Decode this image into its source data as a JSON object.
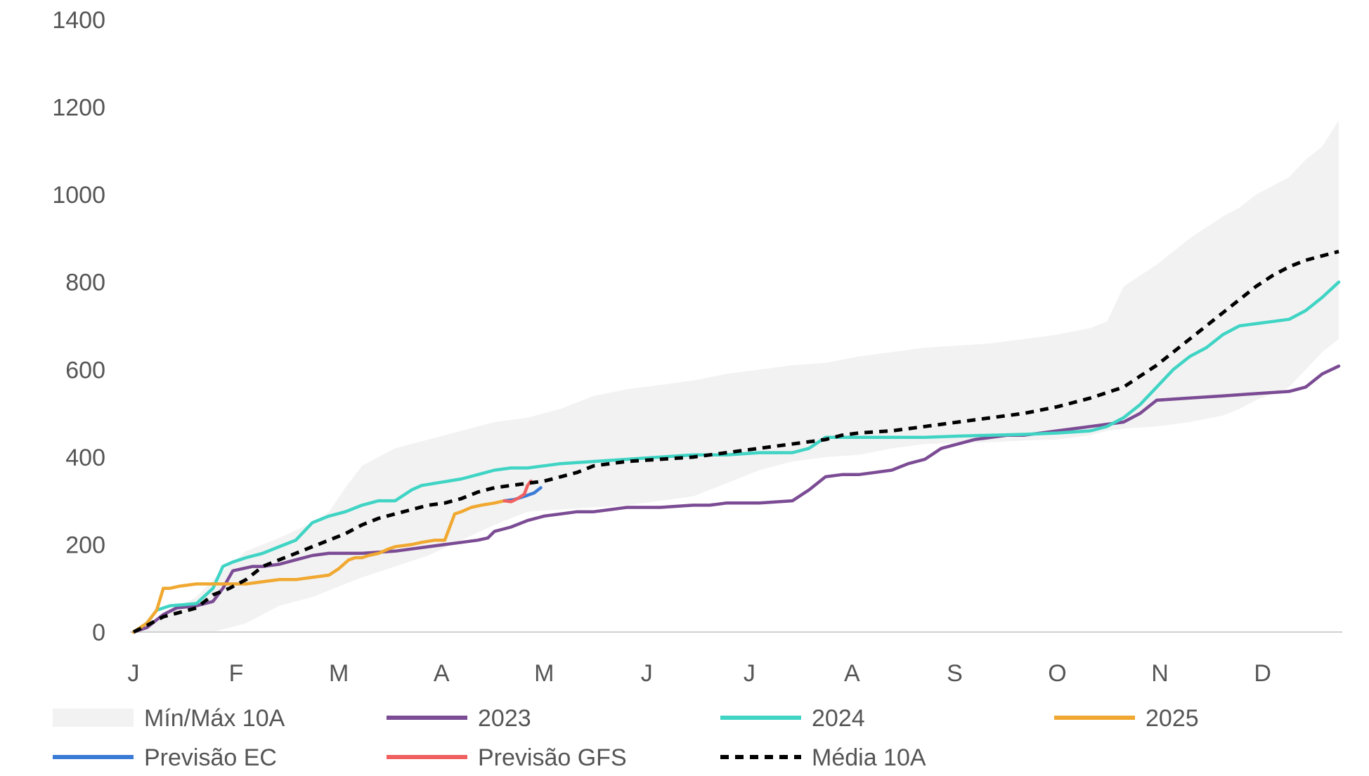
{
  "chart_data": {
    "type": "line",
    "xlabel": "",
    "ylabel": "",
    "x_unit": "day of year",
    "xlim": [
      1,
      365
    ],
    "ylim": [
      0,
      1400
    ],
    "y_ticks": [
      0,
      200,
      400,
      600,
      800,
      1000,
      1200,
      1400
    ],
    "x_ticks": [
      {
        "label": "J",
        "x": 1
      },
      {
        "label": "F",
        "x": 32
      },
      {
        "label": "M",
        "x": 63
      },
      {
        "label": "A",
        "x": 94
      },
      {
        "label": "M",
        "x": 125
      },
      {
        "label": "J",
        "x": 156
      },
      {
        "label": "J",
        "x": 187
      },
      {
        "label": "A",
        "x": 218
      },
      {
        "label": "S",
        "x": 249
      },
      {
        "label": "O",
        "x": 280
      },
      {
        "label": "N",
        "x": 311
      },
      {
        "label": "D",
        "x": 342
      }
    ],
    "band": {
      "name": "Mín/Máx 10A",
      "color": "#f2f2f2",
      "x": [
        1,
        10,
        20,
        25,
        35,
        45,
        55,
        60,
        65,
        70,
        80,
        90,
        100,
        110,
        120,
        130,
        140,
        150,
        160,
        170,
        180,
        190,
        200,
        210,
        220,
        230,
        240,
        250,
        260,
        270,
        280,
        290,
        295,
        300,
        310,
        320,
        330,
        335,
        340,
        350,
        355,
        360,
        365
      ],
      "min": [
        0,
        0,
        0,
        0,
        20,
        60,
        80,
        95,
        110,
        125,
        150,
        175,
        210,
        245,
        275,
        280,
        285,
        290,
        300,
        310,
        340,
        370,
        390,
        400,
        405,
        420,
        430,
        432,
        434,
        438,
        440,
        450,
        460,
        465,
        470,
        480,
        495,
        510,
        530,
        560,
        600,
        640,
        670
      ],
      "max": [
        5,
        40,
        80,
        120,
        185,
        215,
        250,
        275,
        330,
        380,
        420,
        440,
        460,
        480,
        490,
        510,
        540,
        555,
        565,
        575,
        590,
        600,
        610,
        615,
        630,
        640,
        650,
        655,
        660,
        670,
        680,
        695,
        710,
        790,
        840,
        900,
        950,
        970,
        1000,
        1040,
        1080,
        1110,
        1170
      ]
    },
    "series": [
      {
        "name": "2023",
        "color": "#7b4b94",
        "style": "solid",
        "x": [
          1,
          5,
          10,
          14,
          20,
          25,
          28,
          31,
          34,
          37,
          40,
          45,
          50,
          55,
          60,
          70,
          80,
          90,
          95,
          100,
          105,
          108,
          110,
          115,
          120,
          125,
          130,
          135,
          140,
          145,
          150,
          160,
          170,
          175,
          180,
          190,
          200,
          205,
          210,
          215,
          220,
          225,
          230,
          235,
          240,
          245,
          250,
          255,
          260,
          265,
          270,
          275,
          280,
          285,
          290,
          295,
          300,
          305,
          310,
          320,
          330,
          340,
          350,
          355,
          360,
          365
        ],
        "y": [
          0,
          10,
          40,
          55,
          60,
          70,
          100,
          140,
          145,
          150,
          150,
          155,
          165,
          175,
          180,
          180,
          185,
          195,
          200,
          205,
          210,
          215,
          230,
          240,
          255,
          265,
          270,
          275,
          275,
          280,
          285,
          285,
          290,
          290,
          295,
          295,
          300,
          325,
          355,
          360,
          360,
          365,
          370,
          385,
          395,
          420,
          430,
          440,
          445,
          450,
          450,
          455,
          460,
          465,
          470,
          475,
          480,
          500,
          530,
          535,
          540,
          545,
          550,
          560,
          590,
          608
        ]
      },
      {
        "name": "2024",
        "color": "#40d4c4",
        "style": "solid",
        "x": [
          1,
          5,
          8,
          12,
          20,
          25,
          28,
          31,
          35,
          40,
          45,
          50,
          55,
          60,
          65,
          70,
          75,
          80,
          85,
          88,
          92,
          96,
          100,
          105,
          110,
          115,
          120,
          125,
          130,
          140,
          150,
          160,
          170,
          180,
          190,
          200,
          205,
          210,
          215,
          220,
          230,
          240,
          250,
          260,
          270,
          280,
          290,
          295,
          300,
          305,
          310,
          315,
          320,
          325,
          330,
          335,
          340,
          345,
          350,
          355,
          360,
          365
        ],
        "y": [
          0,
          20,
          50,
          60,
          65,
          100,
          150,
          160,
          170,
          180,
          195,
          210,
          250,
          265,
          275,
          290,
          300,
          300,
          325,
          335,
          340,
          345,
          350,
          360,
          370,
          375,
          375,
          380,
          385,
          390,
          395,
          400,
          405,
          405,
          410,
          410,
          420,
          445,
          445,
          445,
          445,
          445,
          448,
          450,
          452,
          455,
          460,
          470,
          490,
          520,
          560,
          600,
          630,
          650,
          680,
          700,
          705,
          710,
          715,
          735,
          765,
          800
        ]
      },
      {
        "name": "2025",
        "color": "#f0a830",
        "style": "solid",
        "x": [
          1,
          5,
          8,
          10,
          12,
          15,
          20,
          25,
          30,
          35,
          40,
          45,
          50,
          55,
          60,
          63,
          66,
          68,
          70,
          72,
          75,
          78,
          80,
          85,
          88,
          92,
          95,
          98,
          100,
          103,
          106,
          110,
          113
        ],
        "y": [
          0,
          20,
          50,
          100,
          100,
          105,
          110,
          110,
          110,
          110,
          115,
          120,
          120,
          125,
          130,
          145,
          165,
          170,
          170,
          175,
          180,
          190,
          195,
          200,
          205,
          210,
          210,
          270,
          275,
          285,
          290,
          295,
          300
        ]
      },
      {
        "name": "Previsão EC",
        "color": "#3a7bd5",
        "style": "solid",
        "x": [
          113,
          116,
          119,
          122,
          124
        ],
        "y": [
          300,
          303,
          310,
          318,
          330
        ]
      },
      {
        "name": "Previsão GFS",
        "color": "#f06060",
        "style": "solid",
        "x": [
          113,
          115,
          117,
          119,
          120,
          121
        ],
        "y": [
          300,
          298,
          305,
          315,
          335,
          345
        ]
      },
      {
        "name": "Média 10A",
        "color": "#000000",
        "style": "dashed",
        "x": [
          1,
          5,
          10,
          15,
          20,
          25,
          30,
          35,
          40,
          45,
          50,
          55,
          60,
          65,
          70,
          75,
          80,
          85,
          90,
          95,
          100,
          105,
          110,
          115,
          120,
          125,
          130,
          135,
          140,
          150,
          160,
          170,
          180,
          190,
          200,
          210,
          215,
          220,
          230,
          240,
          250,
          260,
          270,
          280,
          290,
          300,
          305,
          310,
          315,
          320,
          325,
          330,
          335,
          340,
          345,
          350,
          355,
          360,
          365
        ],
        "y": [
          0,
          15,
          35,
          45,
          55,
          85,
          100,
          120,
          150,
          165,
          180,
          195,
          210,
          225,
          245,
          260,
          270,
          280,
          290,
          295,
          305,
          320,
          330,
          335,
          340,
          345,
          355,
          365,
          380,
          390,
          395,
          400,
          410,
          420,
          430,
          440,
          450,
          455,
          460,
          470,
          480,
          490,
          500,
          515,
          535,
          560,
          585,
          610,
          640,
          670,
          700,
          730,
          760,
          790,
          815,
          835,
          850,
          860,
          870
        ]
      }
    ],
    "legend": [
      {
        "label": "Mín/Máx 10A",
        "kind": "band",
        "color": "#f2f2f2"
      },
      {
        "label": "2023",
        "kind": "line",
        "color": "#7b4b94"
      },
      {
        "label": "2024",
        "kind": "line",
        "color": "#40d4c4"
      },
      {
        "label": "2025",
        "kind": "line",
        "color": "#f0a830"
      },
      {
        "label": "Previsão EC",
        "kind": "line",
        "color": "#3a7bd5"
      },
      {
        "label": "Previsão GFS",
        "kind": "line",
        "color": "#f06060"
      },
      {
        "label": "Média 10A",
        "kind": "dashed",
        "color": "#000000"
      }
    ],
    "legend_position": "bottom",
    "grid": false
  }
}
